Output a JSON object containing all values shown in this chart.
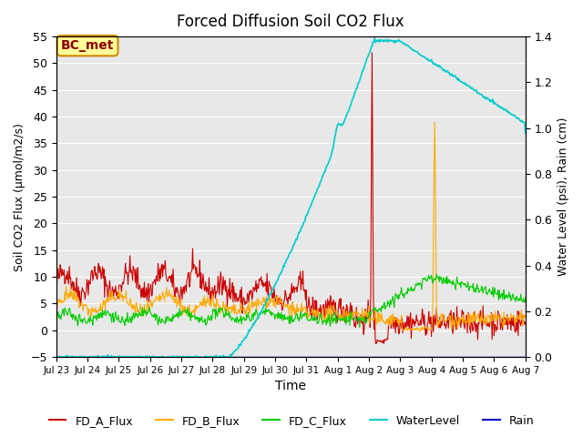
{
  "title": "Forced Diffusion Soil CO2 Flux",
  "xlabel": "Time",
  "ylabel_left": "Soil CO2 Flux (μmol/m2/s)",
  "ylabel_right": "Water Level (psi), Rain (cm)",
  "xlim_days": [
    0,
    15
  ],
  "ylim_left": [
    -5,
    55
  ],
  "ylim_right": [
    0.0,
    1.4
  ],
  "yticks_right": [
    0.0,
    0.2,
    0.4,
    0.6,
    0.8,
    1.0,
    1.2,
    1.4
  ],
  "yticks_left": [
    -5,
    0,
    5,
    10,
    15,
    20,
    25,
    30,
    35,
    40,
    45,
    50,
    55
  ],
  "bg_color": "#e8e8e8",
  "colors": {
    "FD_A_Flux": "#cc0000",
    "FD_B_Flux": "#ffaa00",
    "FD_C_Flux": "#00cc00",
    "WaterLevel": "#00cccc",
    "Rain": "#0000cc"
  },
  "annotation_text": "BC_met",
  "annotation_bg": "#ffff99",
  "annotation_border": "#cc8800"
}
